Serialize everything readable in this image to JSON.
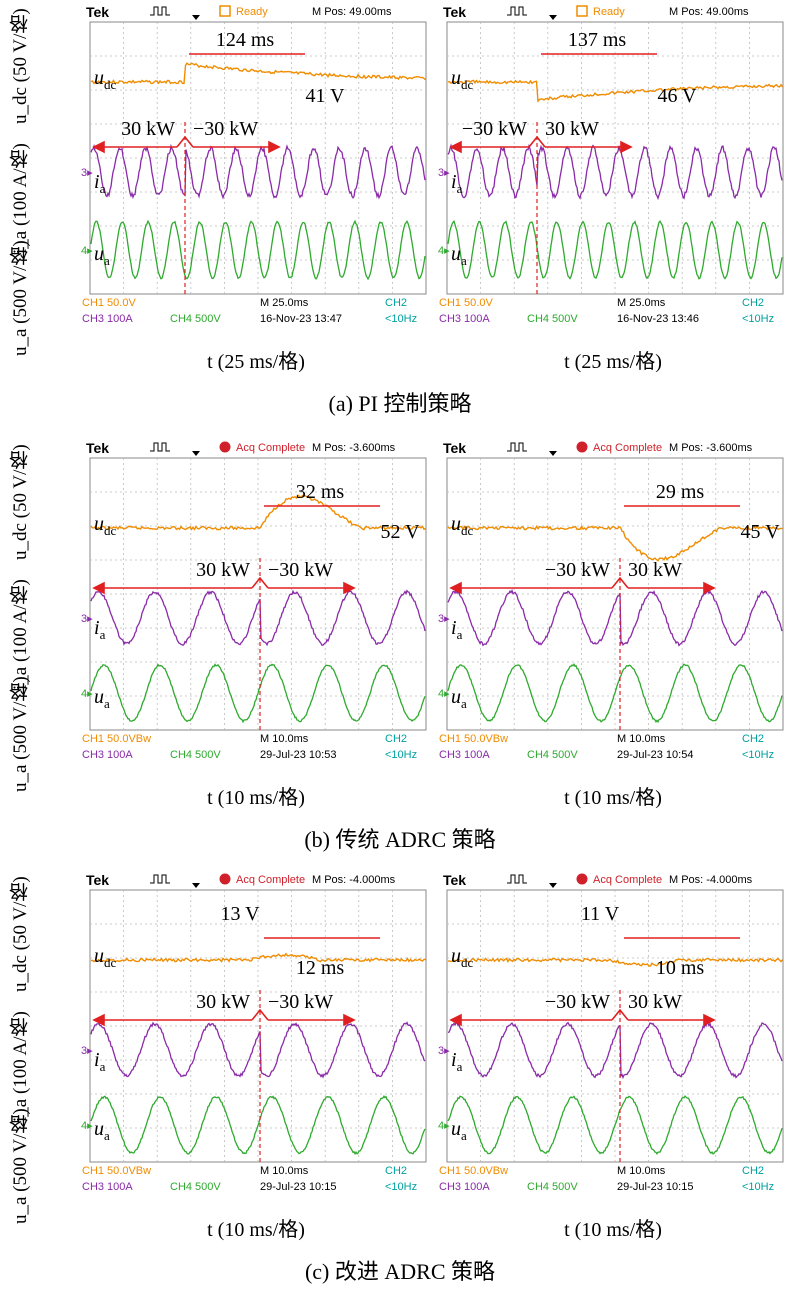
{
  "figure": {
    "axis_labels": {
      "udc": "u_dc (50 V/格)",
      "ia": "i_a (100 A/格)",
      "ua": "u_a (500 V/格)"
    },
    "rows": [
      {
        "caption": "(a) PI 控制策略",
        "time_label": "t (25 ms/格)",
        "panels": [
          {
            "status": "Ready",
            "status_style": "ready",
            "mpos": "M Pos: 49.00ms",
            "ch1": "CH1  50.0V",
            "ch2": "CH2",
            "ch3": "CH3  100A",
            "ch4": "CH4  500V",
            "mscale": "M 25.0ms",
            "date": "16-Nov-23 13:47",
            "trig": "<10Hz",
            "udc_label": "u",
            "udc_sub": "dc",
            "ia_label": "i",
            "ia_sub": "a",
            "ua_label": "u",
            "ua_sub": "a",
            "time_annot": "124 ms",
            "volt_annot": "41 V",
            "power_left": "30 kW",
            "power_right": "−30 kW"
          },
          {
            "status": "Ready",
            "status_style": "ready",
            "mpos": "M Pos: 49.00ms",
            "ch1": "CH1  50.0V",
            "ch2": "CH2",
            "ch3": "CH3  100A",
            "ch4": "CH4  500V",
            "mscale": "M 25.0ms",
            "date": "16-Nov-23 13:46",
            "trig": "<10Hz",
            "udc_label": "u",
            "udc_sub": "dc",
            "ia_label": "i",
            "ia_sub": "a",
            "ua_label": "u",
            "ua_sub": "a",
            "time_annot": "137 ms",
            "volt_annot": "46 V",
            "power_left": "−30 kW",
            "power_right": "30 kW"
          }
        ]
      },
      {
        "caption": "(b) 传统 ADRC 策略",
        "time_label": "t (10 ms/格)",
        "panels": [
          {
            "status": "Acq Complete",
            "status_style": "acq",
            "mpos": "M Pos: -3.600ms",
            "ch1": "CH1  50.0VBw",
            "ch2": "CH2",
            "ch3": "CH3  100A",
            "ch4": "CH4  500V",
            "mscale": "M 10.0ms",
            "date": "29-Jul-23 10:53",
            "trig": "<10Hz",
            "udc_label": "u",
            "udc_sub": "dc",
            "ia_label": "i",
            "ia_sub": "a",
            "ua_label": "u",
            "ua_sub": "a",
            "time_annot": "32 ms",
            "volt_annot": "52 V",
            "power_left": "30 kW",
            "power_right": "−30 kW"
          },
          {
            "status": "Acq Complete",
            "status_style": "acq",
            "mpos": "M Pos: -3.600ms",
            "ch1": "CH1  50.0VBw",
            "ch2": "CH2",
            "ch3": "CH3  100A",
            "ch4": "CH4  500V",
            "mscale": "M 10.0ms",
            "date": "29-Jul-23 10:54",
            "trig": "<10Hz",
            "udc_label": "u",
            "udc_sub": "dc",
            "ia_label": "i",
            "ia_sub": "a",
            "ua_label": "u",
            "ua_sub": "a",
            "time_annot": "29 ms",
            "volt_annot": "45 V",
            "power_left": "−30 kW",
            "power_right": "30 kW"
          }
        ]
      },
      {
        "caption": "(c) 改进 ADRC 策略",
        "time_label": "t (10 ms/格)",
        "panels": [
          {
            "status": "Acq Complete",
            "status_style": "acq",
            "mpos": "M Pos: -4.000ms",
            "ch1": "CH1  50.0VBw",
            "ch2": "CH2",
            "ch3": "CH3  100A",
            "ch4": "CH4  500V",
            "mscale": "M 10.0ms",
            "date": "29-Jul-23 10:15",
            "trig": "<10Hz",
            "udc_label": "u",
            "udc_sub": "dc",
            "ia_label": "i",
            "ia_sub": "a",
            "ua_label": "u",
            "ua_sub": "a",
            "time_annot": "12 ms",
            "volt_annot": "13 V",
            "power_left": "30 kW",
            "power_right": "−30 kW"
          },
          {
            "status": "Acq Complete",
            "status_style": "acq",
            "mpos": "M Pos: -4.000ms",
            "ch1": "CH1  50.0VBw",
            "ch2": "CH2",
            "ch3": "CH3  100A",
            "ch4": "CH4  500V",
            "mscale": "M 10.0ms",
            "date": "29-Jul-23 10:15",
            "trig": "<10Hz",
            "udc_label": "u",
            "udc_sub": "dc",
            "ia_label": "i",
            "ia_sub": "a",
            "ua_label": "u",
            "ua_sub": "a",
            "time_annot": "10 ms",
            "volt_annot": "11 V",
            "power_left": "−30 kW",
            "power_right": "30 kW"
          }
        ]
      }
    ],
    "colors": {
      "udc": "#f08c00",
      "ia": "#8a2aa8",
      "ua": "#2eaa2e",
      "grid": "#bbbbbb",
      "annot": "#e02020",
      "ch2": "#00a0a0"
    }
  }
}
